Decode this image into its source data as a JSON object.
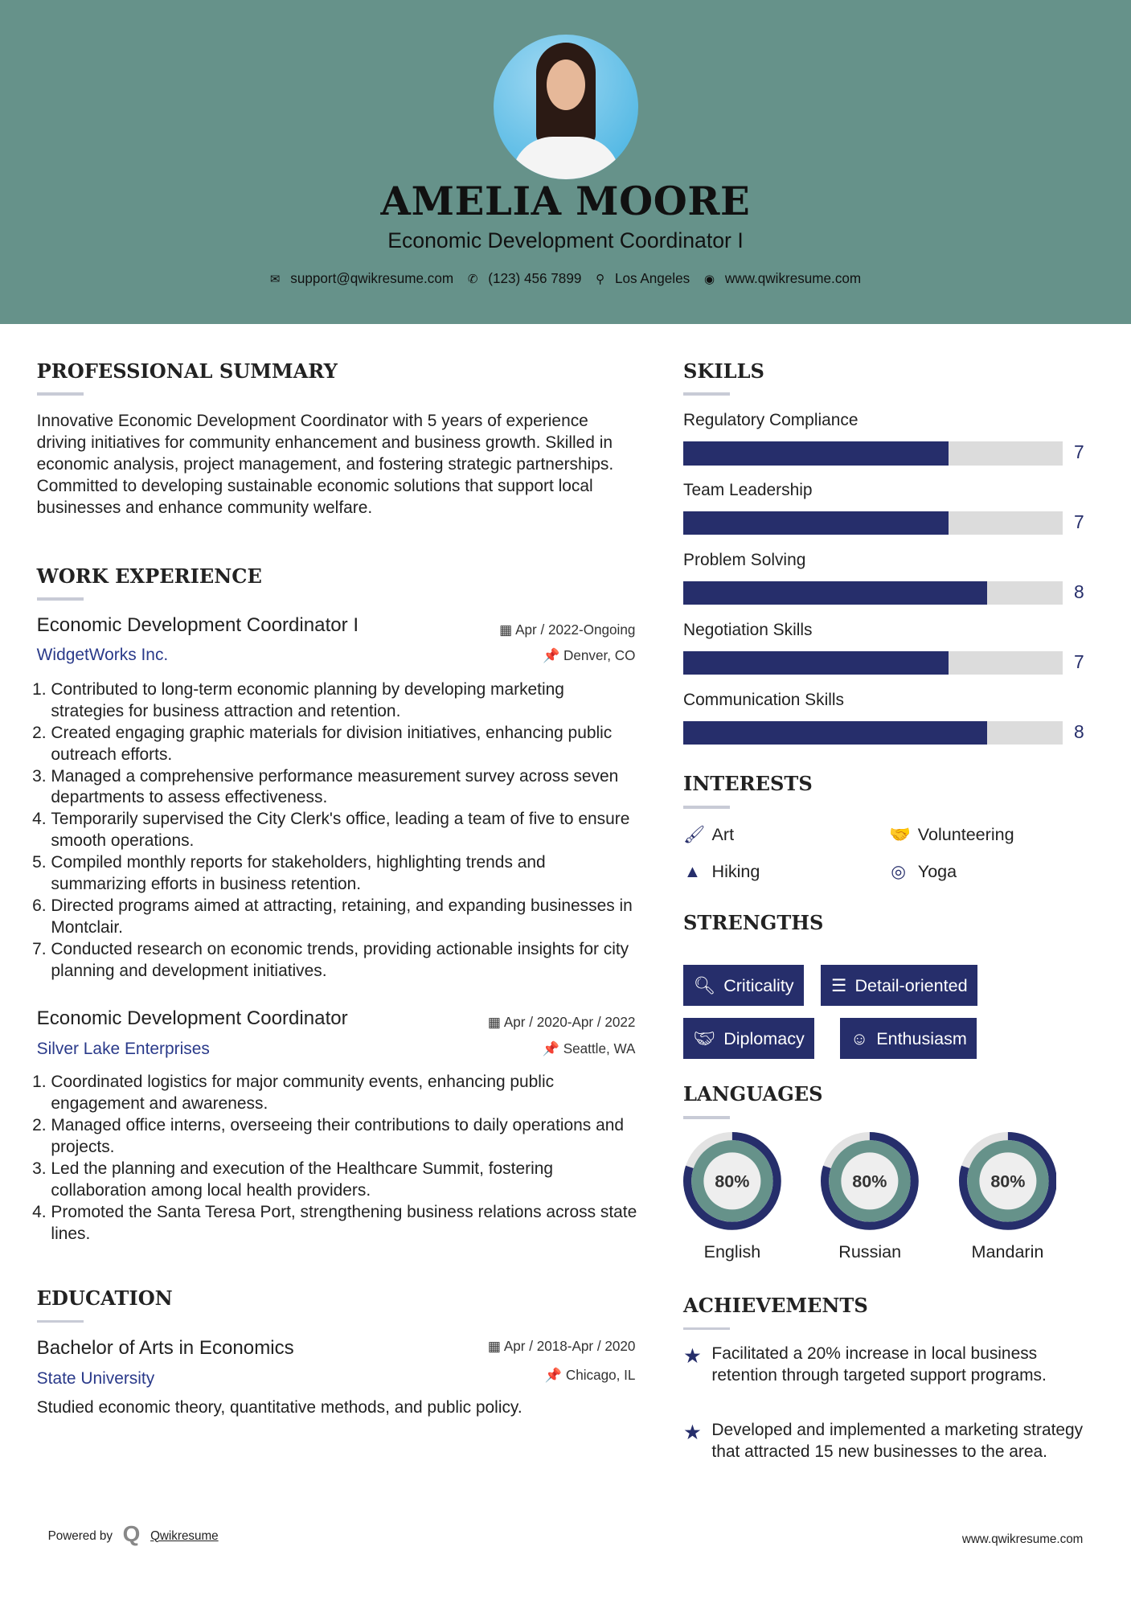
{
  "header": {
    "name": "AMELIA MOORE",
    "title": "Economic Development Coordinator I",
    "contacts": [
      {
        "icon": "envelope-icon",
        "text": "support@qwikresume.com"
      },
      {
        "icon": "phone-icon",
        "text": "(123) 456 7899"
      },
      {
        "icon": "map-pin-icon",
        "text": "Los Angeles"
      },
      {
        "icon": "globe-icon",
        "text": "www.qwikresume.com"
      }
    ]
  },
  "summary": {
    "heading": "PROFESSIONAL SUMMARY",
    "text": "Innovative Economic Development Coordinator with 5 years of experience driving initiatives for community enhancement and business growth. Skilled in economic analysis, project management, and fostering strategic partnerships. Committed to developing sustainable economic solutions that support local businesses and enhance community welfare."
  },
  "experience": {
    "heading": "WORK EXPERIENCE",
    "jobs": [
      {
        "title": "Economic Development Coordinator I",
        "date": "Apr / 2022-Ongoing",
        "company": "WidgetWorks Inc.",
        "location": "Denver, CO",
        "bullets": [
          "Contributed to long-term economic planning by developing marketing strategies for business attraction and retention.",
          "Created engaging graphic materials for division initiatives, enhancing public outreach efforts.",
          "Managed a comprehensive performance measurement survey across seven departments to assess effectiveness.",
          "Temporarily supervised the City Clerk's office, leading a team of five to ensure smooth operations.",
          "Compiled monthly reports for stakeholders, highlighting trends and summarizing efforts in business retention.",
          "Directed programs aimed at attracting, retaining, and expanding businesses in Montclair.",
          "Conducted research on economic trends, providing actionable insights for city planning and development initiatives."
        ]
      },
      {
        "title": "Economic Development Coordinator",
        "date": "Apr / 2020-Apr / 2022",
        "company": "Silver Lake Enterprises",
        "location": "Seattle, WA",
        "bullets": [
          "Coordinated logistics for major community events, enhancing public engagement and awareness.",
          "Managed office interns, overseeing their contributions to daily operations and projects.",
          "Led the planning and execution of the Healthcare Summit, fostering collaboration among local health providers.",
          "Promoted the Santa Teresa Port, strengthening business relations across state lines."
        ]
      }
    ]
  },
  "education": {
    "heading": "EDUCATION",
    "degree": "Bachelor of Arts in Economics",
    "date": "Apr / 2018-Apr / 2020",
    "school": "State University",
    "location": "Chicago, IL",
    "text": "Studied economic theory, quantitative methods, and public policy."
  },
  "skills": {
    "heading": "SKILLS",
    "items": [
      {
        "label": "Regulatory Compliance",
        "value": 7
      },
      {
        "label": "Team Leadership",
        "value": 7
      },
      {
        "label": "Problem Solving",
        "value": 8
      },
      {
        "label": "Negotiation Skills",
        "value": 7
      },
      {
        "label": "Communication Skills",
        "value": 8
      }
    ],
    "max": 10
  },
  "interests": {
    "heading": "INTERESTS",
    "items": [
      {
        "label": "Art",
        "icon": "paintbrush-icon"
      },
      {
        "label": "Volunteering",
        "icon": "handshake-icon"
      },
      {
        "label": "Hiking",
        "icon": "tree-icon"
      },
      {
        "label": "Yoga",
        "icon": "lifering-icon"
      }
    ]
  },
  "strengths": {
    "heading": "STRENGTHS",
    "items": [
      {
        "label": "Criticality",
        "icon": "search-icon"
      },
      {
        "label": "Detail-oriented",
        "icon": "list-icon"
      },
      {
        "label": "Diplomacy",
        "icon": "handshake-icon"
      },
      {
        "label": "Enthusiasm",
        "icon": "smile-icon"
      }
    ]
  },
  "languages": {
    "heading": "LANGUAGES",
    "items": [
      {
        "label": "English",
        "percent": "80%",
        "value": 80
      },
      {
        "label": "Russian",
        "percent": "80%",
        "value": 80
      },
      {
        "label": "Mandarin",
        "percent": "80%",
        "value": 80
      }
    ]
  },
  "achievements": {
    "heading": "ACHIEVEMENTS",
    "items": [
      "Facilitated a 20% increase in local business retention through targeted support programs.",
      "Developed and implemented a marketing strategy that attracted 15 new businesses to the area."
    ]
  },
  "footer": {
    "powered_by": "Powered by",
    "brand": "Qwikresume",
    "url": "www.qwikresume.com"
  },
  "colors": {
    "header": "#66928a",
    "accent": "#262e6b",
    "bar_bg": "#dcdcdc"
  }
}
